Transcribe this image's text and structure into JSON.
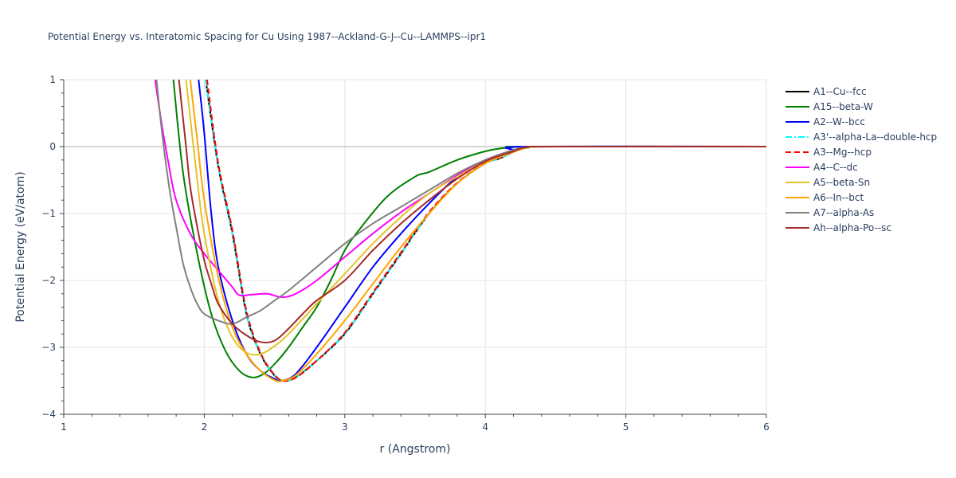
{
  "chart_data": {
    "type": "line",
    "title": "Potential Energy vs. Interatomic Spacing for Cu Using 1987--Ackland-G-J--Cu--LAMMPS--ipr1",
    "xlabel": "r (Angstrom)",
    "ylabel": "Potential Energy (eV/atom)",
    "xlim": [
      1,
      6
    ],
    "ylim": [
      -4,
      1
    ],
    "x_ticks": [
      "1",
      "2",
      "3",
      "4",
      "5",
      "6"
    ],
    "y_ticks": [
      "−4",
      "−3",
      "−2",
      "−1",
      "0",
      "1"
    ],
    "x_tick_values": [
      1,
      2,
      3,
      4,
      5,
      6
    ],
    "y_tick_values": [
      -4,
      -3,
      -2,
      -1,
      0,
      1
    ],
    "grid": true,
    "legend_position": "top-right",
    "series": [
      {
        "name": "A1--Cu--fcc",
        "color": "#000000",
        "dash": "solid",
        "points": [
          [
            2.01,
            1.0
          ],
          [
            2.1,
            -0.3
          ],
          [
            2.2,
            -1.3
          ],
          [
            2.3,
            -2.5
          ],
          [
            2.4,
            -3.1
          ],
          [
            2.5,
            -3.42
          ],
          [
            2.56,
            -3.5
          ],
          [
            2.65,
            -3.45
          ],
          [
            2.8,
            -3.2
          ],
          [
            3.0,
            -2.8
          ],
          [
            3.2,
            -2.2
          ],
          [
            3.4,
            -1.6
          ],
          [
            3.6,
            -1.0
          ],
          [
            3.8,
            -0.55
          ],
          [
            4.0,
            -0.25
          ],
          [
            4.1,
            -0.18
          ],
          [
            4.2,
            -0.08
          ],
          [
            4.3,
            -0.01
          ],
          [
            4.5,
            0
          ],
          [
            6,
            0
          ]
        ]
      },
      {
        "name": "A15--beta-W",
        "color": "#008000",
        "dash": "solid",
        "points": [
          [
            1.78,
            1.0
          ],
          [
            1.85,
            -0.4
          ],
          [
            1.95,
            -1.6
          ],
          [
            2.05,
            -2.5
          ],
          [
            2.15,
            -3.05
          ],
          [
            2.25,
            -3.35
          ],
          [
            2.34,
            -3.45
          ],
          [
            2.42,
            -3.4
          ],
          [
            2.5,
            -3.25
          ],
          [
            2.6,
            -3.0
          ],
          [
            2.7,
            -2.7
          ],
          [
            2.8,
            -2.4
          ],
          [
            2.9,
            -2.0
          ],
          [
            3.0,
            -1.55
          ],
          [
            3.1,
            -1.25
          ],
          [
            3.3,
            -0.75
          ],
          [
            3.5,
            -0.45
          ],
          [
            3.6,
            -0.38
          ],
          [
            3.8,
            -0.2
          ],
          [
            4.0,
            -0.07
          ],
          [
            4.1,
            -0.03
          ],
          [
            4.2,
            -0.01
          ],
          [
            4.3,
            0
          ],
          [
            6,
            0
          ]
        ]
      },
      {
        "name": "A2--W--bcc",
        "color": "#0000ff",
        "dash": "solid",
        "points": [
          [
            1.96,
            1.0
          ],
          [
            2.0,
            0.2
          ],
          [
            2.05,
            -1.0
          ],
          [
            2.1,
            -1.8
          ],
          [
            2.2,
            -2.6
          ],
          [
            2.3,
            -3.1
          ],
          [
            2.4,
            -3.35
          ],
          [
            2.5,
            -3.47
          ],
          [
            2.55,
            -3.5
          ],
          [
            2.65,
            -3.4
          ],
          [
            2.8,
            -3.0
          ],
          [
            3.0,
            -2.4
          ],
          [
            3.2,
            -1.8
          ],
          [
            3.4,
            -1.3
          ],
          [
            3.6,
            -0.85
          ],
          [
            3.8,
            -0.45
          ],
          [
            4.0,
            -0.2
          ],
          [
            4.1,
            -0.15
          ],
          [
            4.2,
            -0.06
          ],
          [
            4.3,
            0
          ],
          [
            6,
            0
          ]
        ]
      },
      {
        "name": "A3'--alpha-La--double-hcp",
        "color": "#00ffff",
        "dash": "dashdot",
        "points": [
          [
            2.01,
            1.0
          ],
          [
            2.1,
            -0.3
          ],
          [
            2.2,
            -1.3
          ],
          [
            2.3,
            -2.5
          ],
          [
            2.4,
            -3.1
          ],
          [
            2.5,
            -3.42
          ],
          [
            2.56,
            -3.5
          ],
          [
            2.65,
            -3.45
          ],
          [
            2.8,
            -3.2
          ],
          [
            3.0,
            -2.8
          ],
          [
            3.2,
            -2.2
          ],
          [
            3.4,
            -1.6
          ],
          [
            3.6,
            -1.0
          ],
          [
            3.8,
            -0.55
          ],
          [
            4.0,
            -0.25
          ],
          [
            4.1,
            -0.18
          ],
          [
            4.2,
            -0.08
          ],
          [
            4.3,
            -0.01
          ],
          [
            4.5,
            0
          ],
          [
            6,
            0
          ]
        ]
      },
      {
        "name": "A3--Mg--hcp",
        "color": "#ff0000",
        "dash": "dash",
        "points": [
          [
            2.02,
            1.0
          ],
          [
            2.1,
            -0.25
          ],
          [
            2.2,
            -1.25
          ],
          [
            2.3,
            -2.45
          ],
          [
            2.4,
            -3.08
          ],
          [
            2.5,
            -3.41
          ],
          [
            2.57,
            -3.5
          ],
          [
            2.66,
            -3.44
          ],
          [
            2.8,
            -3.2
          ],
          [
            3.0,
            -2.78
          ],
          [
            3.2,
            -2.18
          ],
          [
            3.4,
            -1.58
          ],
          [
            3.6,
            -0.98
          ],
          [
            3.8,
            -0.54
          ],
          [
            4.0,
            -0.24
          ],
          [
            4.1,
            -0.17
          ],
          [
            4.2,
            -0.07
          ],
          [
            4.3,
            -0.01
          ],
          [
            4.5,
            0
          ],
          [
            6,
            0
          ]
        ]
      },
      {
        "name": "A4--C--dc",
        "color": "#ff00ff",
        "dash": "solid",
        "points": [
          [
            1.65,
            1.0
          ],
          [
            1.7,
            0.3
          ],
          [
            1.75,
            -0.3
          ],
          [
            1.8,
            -0.8
          ],
          [
            1.9,
            -1.3
          ],
          [
            2.0,
            -1.6
          ],
          [
            2.1,
            -1.85
          ],
          [
            2.2,
            -2.1
          ],
          [
            2.25,
            -2.22
          ],
          [
            2.35,
            -2.21
          ],
          [
            2.45,
            -2.2
          ],
          [
            2.55,
            -2.25
          ],
          [
            2.65,
            -2.2
          ],
          [
            2.8,
            -2.0
          ],
          [
            3.0,
            -1.65
          ],
          [
            3.2,
            -1.3
          ],
          [
            3.4,
            -0.98
          ],
          [
            3.6,
            -0.7
          ],
          [
            3.8,
            -0.43
          ],
          [
            4.0,
            -0.2
          ],
          [
            4.2,
            -0.05
          ],
          [
            4.3,
            -0.01
          ],
          [
            4.5,
            0
          ],
          [
            6,
            0
          ]
        ]
      },
      {
        "name": "A5--beta-Sn",
        "color": "#e6c229",
        "dash": "solid",
        "points": [
          [
            1.87,
            1.0
          ],
          [
            1.95,
            -0.5
          ],
          [
            2.0,
            -1.3
          ],
          [
            2.1,
            -2.3
          ],
          [
            2.2,
            -2.85
          ],
          [
            2.3,
            -3.08
          ],
          [
            2.4,
            -3.1
          ],
          [
            2.5,
            -2.98
          ],
          [
            2.6,
            -2.8
          ],
          [
            2.8,
            -2.35
          ],
          [
            3.0,
            -1.9
          ],
          [
            3.2,
            -1.45
          ],
          [
            3.4,
            -1.05
          ],
          [
            3.6,
            -0.7
          ],
          [
            3.8,
            -0.45
          ],
          [
            4.0,
            -0.22
          ],
          [
            4.2,
            -0.08
          ],
          [
            4.3,
            -0.02
          ],
          [
            4.5,
            0
          ],
          [
            6,
            0
          ]
        ]
      },
      {
        "name": "A6--In--bct",
        "color": "#ffa500",
        "dash": "solid",
        "points": [
          [
            1.9,
            1.0
          ],
          [
            1.95,
            0.1
          ],
          [
            2.0,
            -0.8
          ],
          [
            2.1,
            -1.95
          ],
          [
            2.2,
            -2.7
          ],
          [
            2.3,
            -3.1
          ],
          [
            2.4,
            -3.35
          ],
          [
            2.5,
            -3.49
          ],
          [
            2.55,
            -3.5
          ],
          [
            2.65,
            -3.42
          ],
          [
            2.8,
            -3.1
          ],
          [
            3.0,
            -2.6
          ],
          [
            3.2,
            -2.05
          ],
          [
            3.4,
            -1.5
          ],
          [
            3.6,
            -1.0
          ],
          [
            3.8,
            -0.55
          ],
          [
            4.0,
            -0.25
          ],
          [
            4.2,
            -0.08
          ],
          [
            4.3,
            -0.01
          ],
          [
            4.5,
            0
          ],
          [
            6,
            0
          ]
        ]
      },
      {
        "name": "A7--alpha-As",
        "color": "#808080",
        "dash": "solid",
        "points": [
          [
            1.66,
            1.0
          ],
          [
            1.7,
            0.2
          ],
          [
            1.75,
            -0.6
          ],
          [
            1.8,
            -1.2
          ],
          [
            1.85,
            -1.75
          ],
          [
            1.9,
            -2.1
          ],
          [
            1.95,
            -2.35
          ],
          [
            2.0,
            -2.5
          ],
          [
            2.1,
            -2.6
          ],
          [
            2.2,
            -2.65
          ],
          [
            2.3,
            -2.55
          ],
          [
            2.4,
            -2.45
          ],
          [
            2.5,
            -2.3
          ],
          [
            2.6,
            -2.15
          ],
          [
            2.8,
            -1.8
          ],
          [
            3.0,
            -1.45
          ],
          [
            3.2,
            -1.15
          ],
          [
            3.4,
            -0.9
          ],
          [
            3.6,
            -0.65
          ],
          [
            3.8,
            -0.4
          ],
          [
            4.0,
            -0.2
          ],
          [
            4.2,
            -0.05
          ],
          [
            4.3,
            -0.01
          ],
          [
            4.5,
            0
          ],
          [
            6,
            0
          ]
        ]
      },
      {
        "name": "Ah--alpha-Po--sc",
        "color": "#a52a2a",
        "dash": "solid",
        "points": [
          [
            1.82,
            1.0
          ],
          [
            1.87,
            0.0
          ],
          [
            1.9,
            -0.6
          ],
          [
            1.95,
            -1.2
          ],
          [
            2.0,
            -1.7
          ],
          [
            2.05,
            -2.05
          ],
          [
            2.1,
            -2.35
          ],
          [
            2.2,
            -2.65
          ],
          [
            2.3,
            -2.82
          ],
          [
            2.4,
            -2.92
          ],
          [
            2.5,
            -2.9
          ],
          [
            2.6,
            -2.72
          ],
          [
            2.7,
            -2.5
          ],
          [
            2.8,
            -2.3
          ],
          [
            3.0,
            -2.0
          ],
          [
            3.2,
            -1.55
          ],
          [
            3.4,
            -1.15
          ],
          [
            3.6,
            -0.8
          ],
          [
            3.8,
            -0.48
          ],
          [
            4.0,
            -0.22
          ],
          [
            4.2,
            -0.07
          ],
          [
            4.3,
            -0.01
          ],
          [
            4.5,
            0
          ],
          [
            6,
            0
          ]
        ]
      }
    ]
  }
}
